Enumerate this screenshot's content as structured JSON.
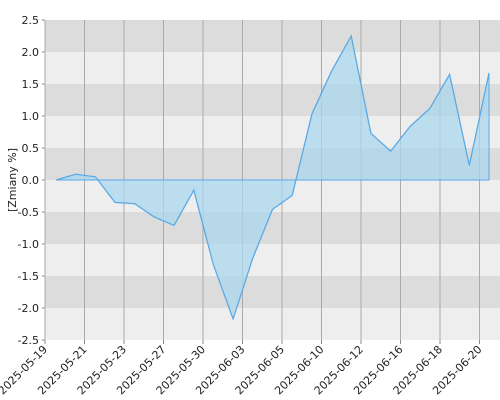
{
  "chart_data": {
    "type": "area",
    "y_label": "[Zmiany %]",
    "x_tick_labels": [
      "2025-05-19",
      "2025-05-21",
      "2025-05-23",
      "2025-05-27",
      "2025-05-30",
      "2025-06-03",
      "2025-06-05",
      "2025-06-10",
      "2025-06-12",
      "2025-06-16",
      "2025-06-18",
      "2025-06-20"
    ],
    "values": [
      0.0,
      0.09,
      0.05,
      -0.35,
      -0.37,
      -0.58,
      -0.71,
      -0.16,
      -1.33,
      -2.17,
      -1.22,
      -0.46,
      -0.24,
      1.03,
      1.7,
      2.25,
      0.73,
      0.45,
      0.84,
      1.12,
      1.65,
      0.23,
      1.67
    ],
    "color": "#5aaae6",
    "fill": "#a9d7ee",
    "ylim": [
      -2.5,
      2.5
    ],
    "yticks": [
      2.5,
      {
        "value": 2.0,
        "label": "2.0"
      },
      1.5,
      {
        "value": 1.0,
        "label": "1.0"
      },
      0.5,
      {
        "value": 0.0,
        "label": "0.0"
      },
      -0.5,
      {
        "value": -1.0,
        "label": "-1.0"
      },
      -1.5,
      {
        "value": -2.0,
        "label": "-2.0"
      },
      -2.5
    ],
    "grid": true
  }
}
